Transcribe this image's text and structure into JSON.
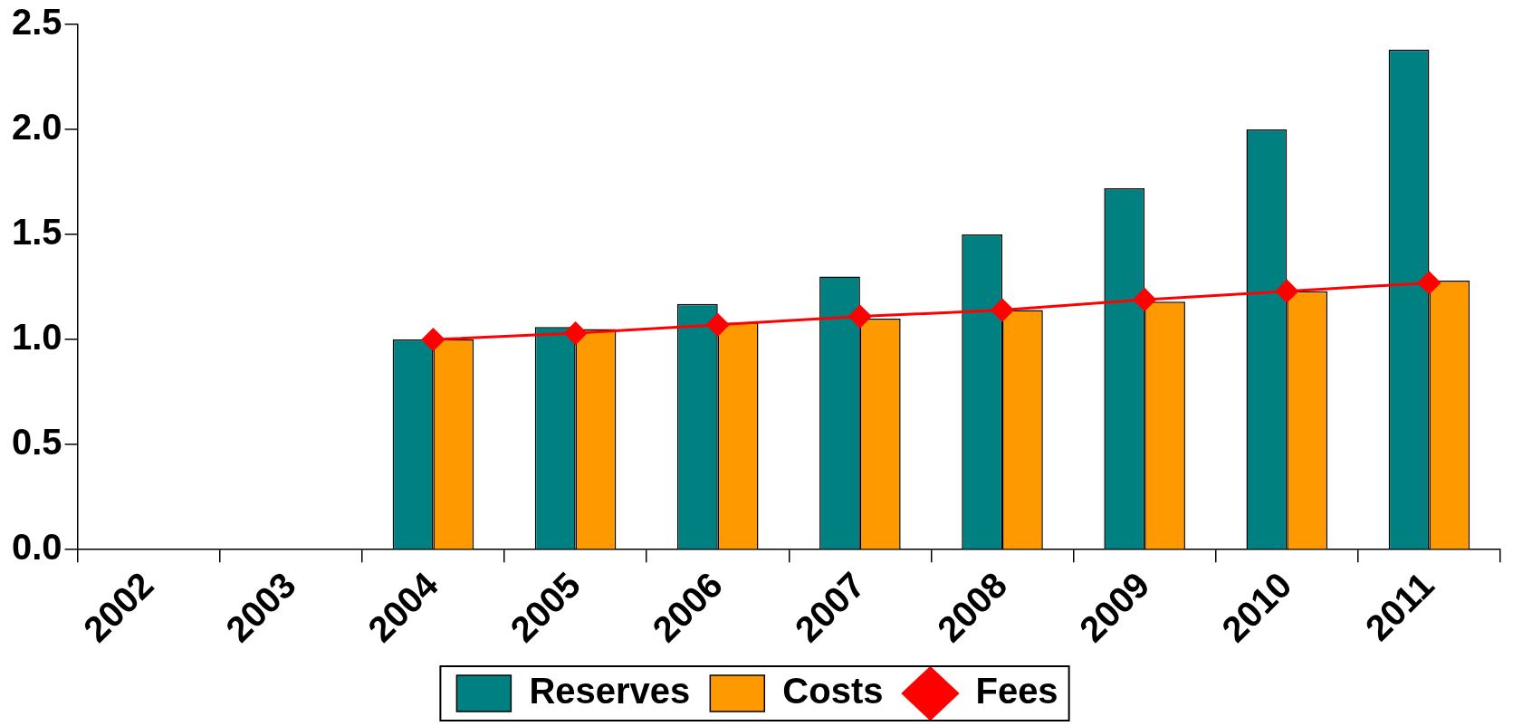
{
  "chart_data": {
    "type": "bar",
    "categories": [
      "2002",
      "2003",
      "2004",
      "2005",
      "2006",
      "2007",
      "2008",
      "2009",
      "2010",
      "2011"
    ],
    "series": [
      {
        "name": "Reserves",
        "color": "#008080",
        "values": [
          null,
          null,
          1.0,
          1.06,
          1.17,
          1.3,
          1.5,
          1.72,
          2.0,
          2.38
        ]
      },
      {
        "name": "Costs",
        "color": "#ff9900",
        "values": [
          null,
          null,
          1.0,
          1.05,
          1.08,
          1.1,
          1.14,
          1.18,
          1.23,
          1.28
        ]
      },
      {
        "name": "Fees",
        "type": "line",
        "color": "#ff0000",
        "values": [
          null,
          null,
          1.0,
          1.03,
          1.07,
          1.11,
          1.14,
          1.19,
          1.23,
          1.27
        ]
      }
    ],
    "ylim": [
      0,
      2.5
    ],
    "yticks": [
      {
        "value": 0,
        "label": "0.0"
      },
      {
        "value": 0.5,
        "label": "0.5"
      },
      {
        "value": 1,
        "label": "1.0"
      },
      {
        "value": 1.5,
        "label": "1.5"
      },
      {
        "value": 2,
        "label": "2.0"
      },
      {
        "value": 2.5,
        "label": "2.5"
      }
    ],
    "grid": false,
    "legend": "bottom",
    "marker": "diamond",
    "line_style": "solid"
  }
}
